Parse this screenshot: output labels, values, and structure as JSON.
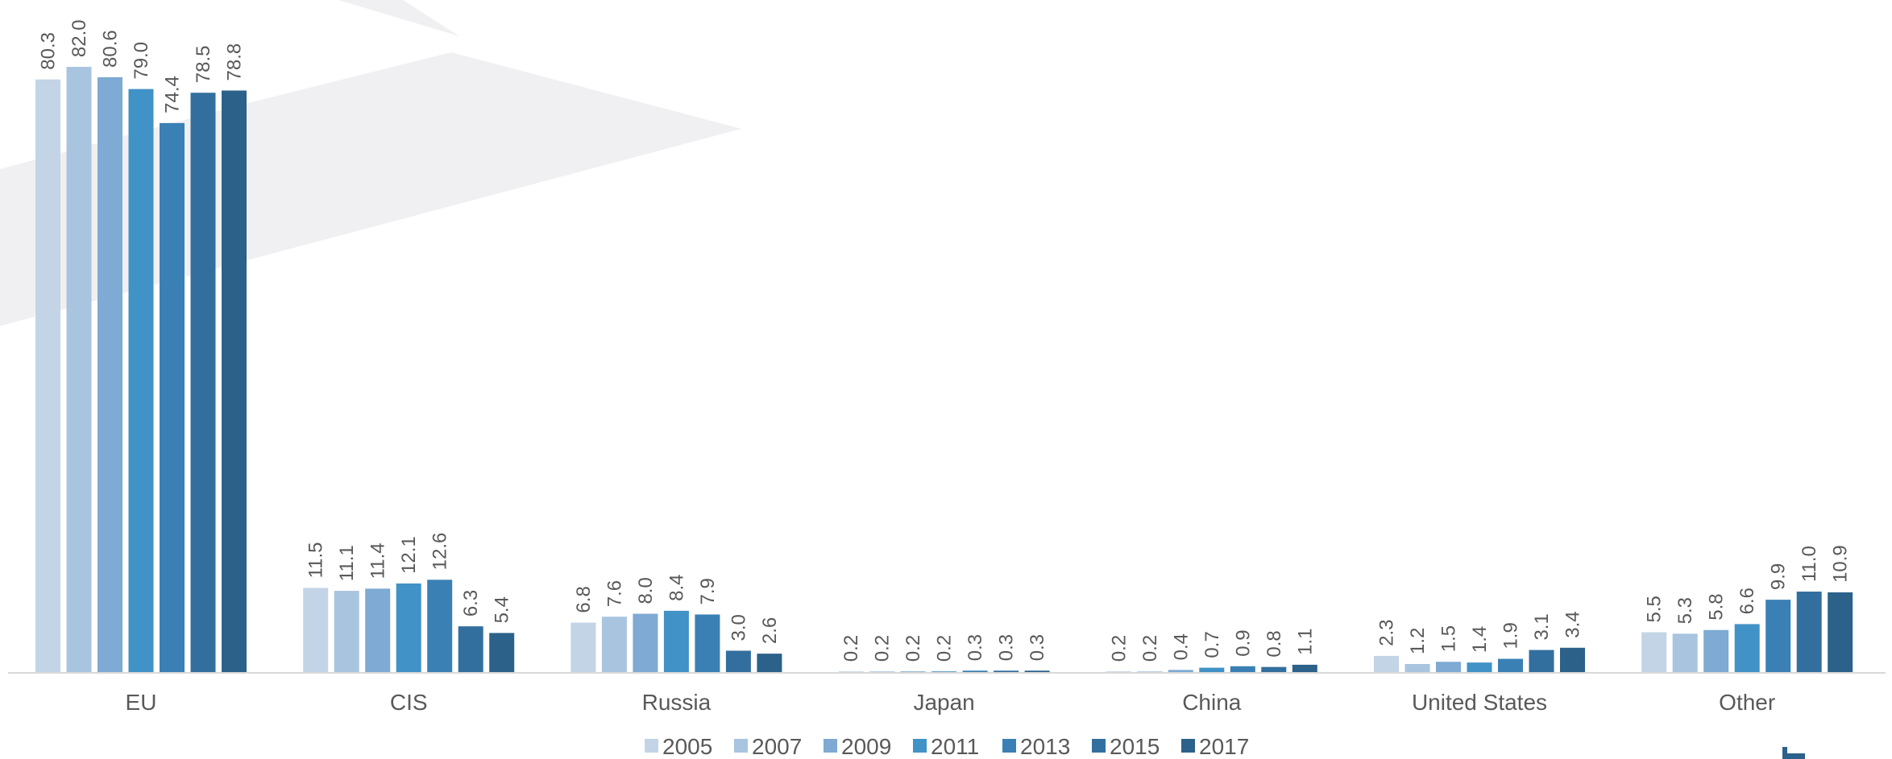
{
  "chart_data": {
    "type": "bar",
    "categories": [
      "EU",
      "CIS",
      "Russia",
      "Japan",
      "China",
      "United States",
      "Other"
    ],
    "series": [
      {
        "name": "2005",
        "color": "#c3d4e6",
        "values": [
          80.3,
          11.5,
          6.8,
          0.2,
          0.2,
          2.3,
          5.5
        ]
      },
      {
        "name": "2007",
        "color": "#a9c4df",
        "values": [
          82.0,
          11.1,
          7.6,
          0.2,
          0.2,
          1.2,
          5.3
        ]
      },
      {
        "name": "2009",
        "color": "#7eaad3",
        "values": [
          80.6,
          11.4,
          8.0,
          0.2,
          0.4,
          1.5,
          5.8
        ]
      },
      {
        "name": "2011",
        "color": "#4192c6",
        "values": [
          79.0,
          12.1,
          8.4,
          0.2,
          0.7,
          1.4,
          6.6
        ]
      },
      {
        "name": "2013",
        "color": "#3a80b4",
        "values": [
          74.4,
          12.6,
          7.9,
          0.3,
          0.9,
          1.9,
          9.9
        ]
      },
      {
        "name": "2015",
        "color": "#336f9e",
        "values": [
          78.5,
          6.3,
          3.0,
          0.3,
          0.8,
          3.1,
          11.0
        ]
      },
      {
        "name": "2017",
        "color": "#2c618a",
        "values": [
          78.8,
          5.4,
          2.6,
          0.3,
          1.1,
          3.4,
          10.9
        ]
      }
    ],
    "ylim": [
      0,
      88
    ],
    "grid": false,
    "legend_position": "bottom",
    "data_labels": true,
    "data_label_format": "0.0"
  }
}
